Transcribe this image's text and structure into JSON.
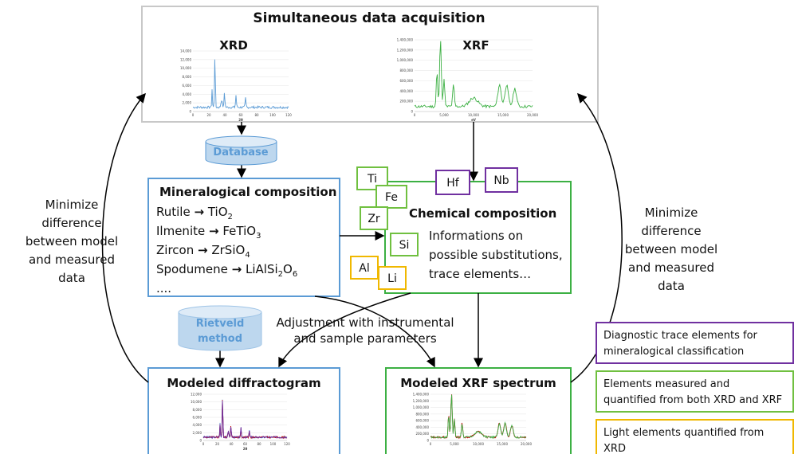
{
  "top": {
    "title": "Simultaneous data acquisition",
    "xrd": {
      "label": "XRD",
      "yticks": [
        "0",
        "2,000",
        "4,000",
        "6,000",
        "8,000",
        "10,000",
        "12,000",
        "14,000"
      ],
      "xticks": [
        "0",
        "20",
        "40",
        "60",
        "80",
        "100",
        "120"
      ],
      "xlabel": "2θ"
    },
    "xrf": {
      "label": "XRF",
      "yticks": [
        "0",
        "200,000",
        "400,000",
        "600,000",
        "800,000",
        "1,000,000",
        "1,200,000",
        "1,400,000"
      ],
      "xticks": [
        "0",
        "5,000",
        "10,000",
        "15,000",
        "20,000"
      ],
      "xlabel": "eV"
    }
  },
  "database": "Database",
  "mineralogical": {
    "title": "Mineralogical composition",
    "rows": [
      {
        "mineral": "Rutile",
        "arrow": "→",
        "formula": [
          "TiO",
          "2"
        ]
      },
      {
        "mineral": "Ilmenite",
        "arrow": "→",
        "formula": [
          "FeTiO",
          "3"
        ]
      },
      {
        "mineral": "Zircon",
        "arrow": "→",
        "formula": [
          "ZrSiO",
          "4"
        ]
      },
      {
        "mineral": "Spodumene",
        "arrow": "→",
        "formula": [
          "LiAlSi",
          "2",
          "O",
          "6"
        ]
      }
    ],
    "more": "...."
  },
  "chemical": {
    "title": "Chemical composition",
    "lines": [
      "Informations on",
      "possible substitutions,",
      "trace elements…"
    ]
  },
  "elements": [
    {
      "symbol": "Ti",
      "color": "#70c040"
    },
    {
      "symbol": "Fe",
      "color": "#70c040"
    },
    {
      "symbol": "Zr",
      "color": "#70c040"
    },
    {
      "symbol": "Si",
      "color": "#70c040"
    },
    {
      "symbol": "Al",
      "color": "#f0b800"
    },
    {
      "symbol": "Li",
      "color": "#f0b800"
    },
    {
      "symbol": "Hf",
      "color": "#7030a0"
    },
    {
      "symbol": "Nb",
      "color": "#7030a0"
    }
  ],
  "rietveld": [
    "Rietveld",
    "method"
  ],
  "adjustment": [
    "Adjustment with instrumental",
    "and sample parameters"
  ],
  "modeled_diffractogram": {
    "title": "Modeled diffractogram",
    "yticks": [
      "0",
      "2,000",
      "4,000",
      "6,000",
      "8,000",
      "10,000",
      "12,000"
    ],
    "xticks": [
      "0",
      "20",
      "40",
      "60",
      "80",
      "100",
      "120"
    ],
    "xlabel": "2θ"
  },
  "modeled_xrf": {
    "title": "Modeled XRF spectrum",
    "yticks": [
      "0",
      "200,000",
      "400,000",
      "600,000",
      "800,000",
      "1,000,000",
      "1,200,000",
      "1,400,000"
    ],
    "xticks": [
      "0",
      "5,000",
      "10,000",
      "15,000",
      "20,000"
    ]
  },
  "minimize_left": [
    "Minimize",
    "difference",
    "between model",
    "and measured",
    "data"
  ],
  "minimize_right": [
    "Minimize",
    "difference",
    "between model",
    "and measured",
    "data"
  ],
  "legend": [
    {
      "lines": [
        "Diagnostic trace elements for",
        "mineralogical classification"
      ],
      "color": "#7030a0"
    },
    {
      "lines": [
        "Elements measured and",
        "quantified from both XRD and XRF"
      ],
      "color": "#70c040"
    },
    {
      "lines": [
        "Light elements quantified from",
        "XRD"
      ],
      "color": "#f0b800"
    }
  ]
}
